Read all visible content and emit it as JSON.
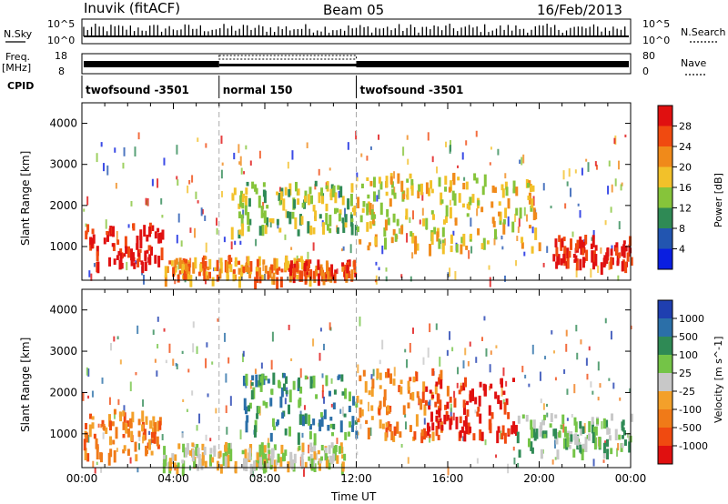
{
  "header": {
    "station": "Inuvik (fitACF)",
    "beam": "Beam 05",
    "date": "16/Feb/2013"
  },
  "strip_labels": {
    "nsky": "N.Sky",
    "nsearch": "N.Search",
    "freq_line1": "Freq.",
    "freq_line2": "[MHz]",
    "cpid": "CPID",
    "nave": "Nave",
    "nsky_ticks": [
      "10^5",
      "10^0"
    ],
    "nsky_ticks_right": [
      "10^5",
      "10^0"
    ],
    "freq_ticks": [
      "18",
      "8"
    ],
    "nave_ticks": [
      "80",
      "0"
    ]
  },
  "cpid_segments": [
    {
      "label": "twofsound -3501",
      "start": 0,
      "end": 6
    },
    {
      "label": "normal 150",
      "start": 6,
      "end": 12
    },
    {
      "label": "twofsound -3501",
      "start": 12,
      "end": 24
    }
  ],
  "chart_data": [
    {
      "type": "heatmap",
      "title": "",
      "ylabel": "Slant Range [km]",
      "xlabel": "",
      "x_range_hours": [
        0,
        24
      ],
      "y_range_km": [
        180,
        4500
      ],
      "y_ticks": [
        "1000",
        "2000",
        "3000",
        "4000"
      ],
      "y_tick_values": [
        1000,
        2000,
        3000,
        4000
      ],
      "colorbar": {
        "label": "Power [dB]",
        "ticks": [
          "4",
          "8",
          "12",
          "16",
          "20",
          "24",
          "28"
        ],
        "colors": [
          "#0a1ee0",
          "#2255b0",
          "#2f8a55",
          "#86c43a",
          "#f2c12a",
          "#f08a1a",
          "#f04a10",
          "#e01010"
        ]
      },
      "regions": [
        {
          "t0": 0.0,
          "t1": 3.5,
          "r0": 600,
          "r1": 1600,
          "level": 7
        },
        {
          "t0": 3.5,
          "t1": 10.0,
          "r0": 250,
          "r1": 800,
          "level": 5
        },
        {
          "t0": 6.5,
          "t1": 12.0,
          "r0": 1400,
          "r1": 2600,
          "level": 3
        },
        {
          "t0": 9.0,
          "t1": 12.0,
          "r0": 300,
          "r1": 700,
          "level": 6
        },
        {
          "t0": 12.0,
          "t1": 20.0,
          "r0": 1000,
          "r1": 2800,
          "level": 4
        },
        {
          "t0": 20.5,
          "t1": 24.0,
          "r0": 600,
          "r1": 1300,
          "level": 7
        }
      ]
    },
    {
      "type": "heatmap",
      "title": "",
      "ylabel": "Slant Range [km]",
      "xlabel": "Time UT",
      "x_range_hours": [
        0,
        24
      ],
      "y_range_km": [
        180,
        4500
      ],
      "y_ticks": [
        "1000",
        "2000",
        "3000",
        "4000"
      ],
      "y_tick_values": [
        1000,
        2000,
        3000,
        4000
      ],
      "x_ticks": [
        "00:00",
        "04:00",
        "08:00",
        "12:00",
        "16:00",
        "20:00",
        "00:00"
      ],
      "colorbar": {
        "label": "Velocity [m s^-1]",
        "ticks": [
          "1000",
          "500",
          "100",
          "25",
          "-25",
          "-100",
          "-500",
          "-1000"
        ],
        "colors": [
          "#1f3fb0",
          "#2b6fa8",
          "#2f8a55",
          "#74c447",
          "#c8c8c8",
          "#f3a02a",
          "#f07a18",
          "#f04a10",
          "#e01010"
        ]
      },
      "regions": [
        {
          "t0": 0.0,
          "t1": 3.5,
          "r0": 500,
          "r1": 1600,
          "level": 6
        },
        {
          "t0": 3.5,
          "t1": 11.5,
          "r0": 250,
          "r1": 800,
          "level": 4
        },
        {
          "t0": 7.0,
          "t1": 12.0,
          "r0": 1000,
          "r1": 2500,
          "level": 2
        },
        {
          "t0": 12.0,
          "t1": 16.0,
          "r0": 900,
          "r1": 2600,
          "level": 6
        },
        {
          "t0": 15.0,
          "t1": 19.0,
          "r0": 1000,
          "r1": 2400,
          "level": 8
        },
        {
          "t0": 19.0,
          "t1": 24.0,
          "r0": 600,
          "r1": 1500,
          "level": 3
        }
      ]
    }
  ]
}
